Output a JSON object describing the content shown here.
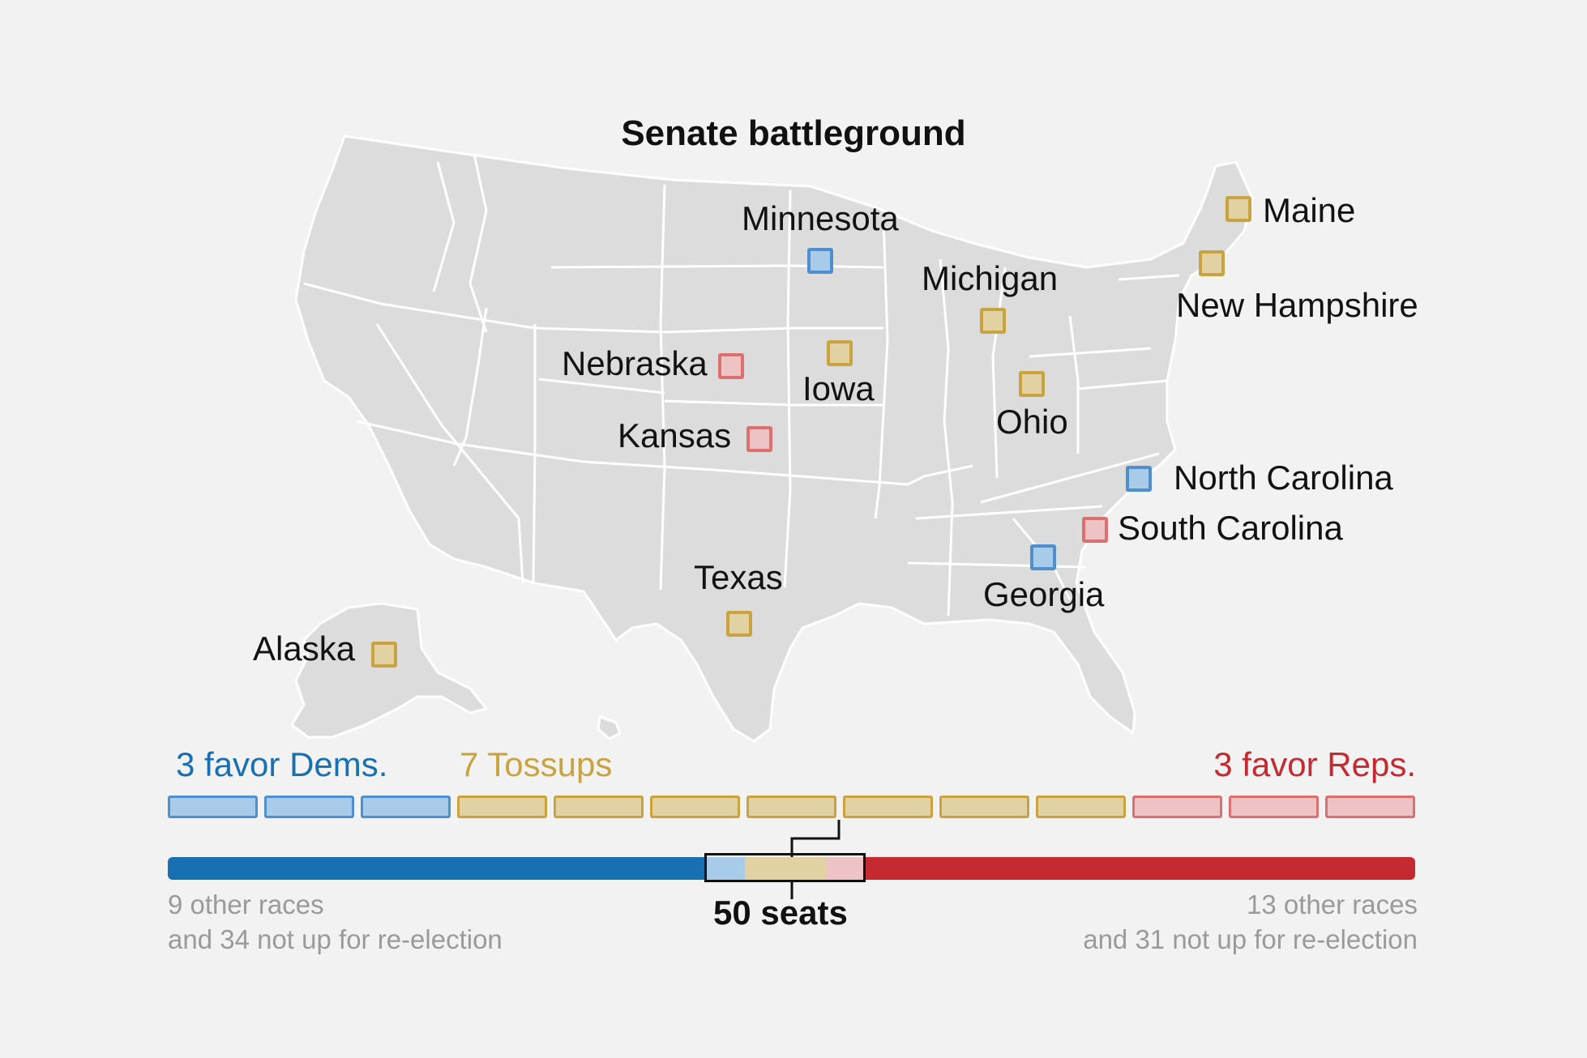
{
  "title": "Senate battleground",
  "colors": {
    "dem": "#1870b2",
    "rep": "#c52a30",
    "tossup": "#c9a33f",
    "dem_fill": "#a9cbea",
    "dem_stroke": "#4f8fd0",
    "tossup_fill": "#e2d2a3",
    "tossup_stroke": "#c9a33f",
    "rep_fill": "#eec3c5",
    "rep_stroke": "#dc6f70",
    "map_fill": "#dcdcdc",
    "map_border": "#ffffff"
  },
  "states": [
    {
      "name": "Minnesota",
      "rating": "dem"
    },
    {
      "name": "Michigan",
      "rating": "tossup"
    },
    {
      "name": "Maine",
      "rating": "tossup"
    },
    {
      "name": "New Hampshire",
      "rating": "tossup"
    },
    {
      "name": "Nebraska",
      "rating": "rep"
    },
    {
      "name": "Iowa",
      "rating": "tossup"
    },
    {
      "name": "Ohio",
      "rating": "tossup"
    },
    {
      "name": "Kansas",
      "rating": "rep"
    },
    {
      "name": "North Carolina",
      "rating": "dem"
    },
    {
      "name": "South Carolina",
      "rating": "rep"
    },
    {
      "name": "Georgia",
      "rating": "dem"
    },
    {
      "name": "Texas",
      "rating": "tossup"
    },
    {
      "name": "Alaska",
      "rating": "tossup"
    }
  ],
  "groups": {
    "dem": {
      "label": "3 favor Dems.",
      "count": 3
    },
    "tossup": {
      "label": "7 Tossups",
      "count": 7
    },
    "rep": {
      "label": "3 favor Reps.",
      "count": 3
    }
  },
  "seat_bar": {
    "majority_label": "50 seats",
    "dem_note_line1": "9 other races",
    "dem_note_line2": "and 34 not up for re-election",
    "rep_note_line1": "13 other races",
    "rep_note_line2": "and 31 not up for re-election"
  }
}
